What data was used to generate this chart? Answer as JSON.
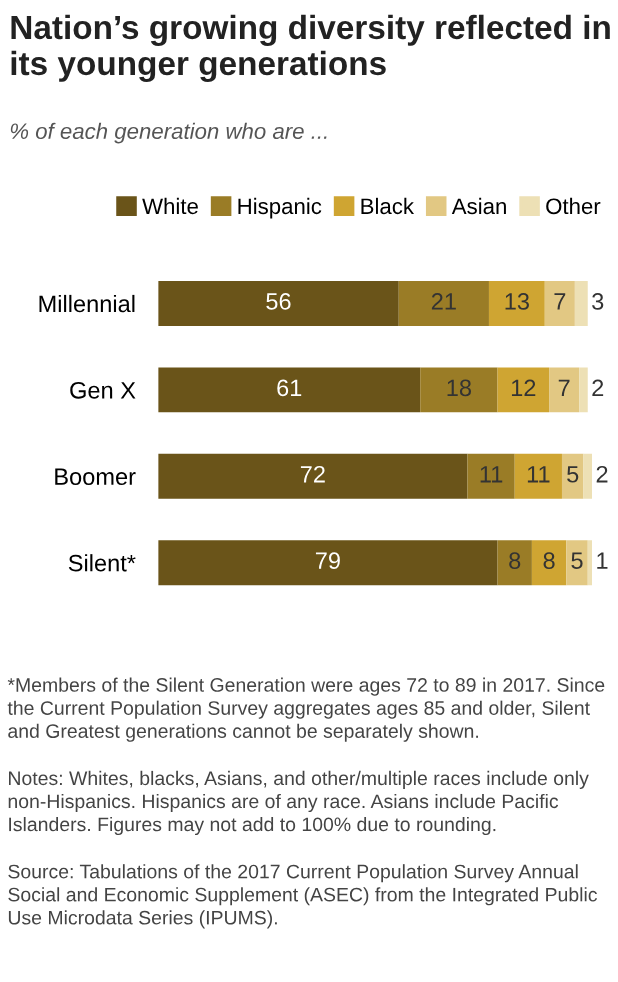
{
  "chart_data": {
    "type": "bar",
    "orientation": "horizontal",
    "stacked": true,
    "title": "Nation’s growing diversity reflected in its younger generations",
    "subtitle": "% of each generation who are ...",
    "categories": [
      "Millennial",
      "Gen X",
      "Boomer",
      "Silent*"
    ],
    "series": [
      {
        "name": "White",
        "color": "#6a5419",
        "values": [
          56,
          61,
          72,
          79
        ]
      },
      {
        "name": "Hispanic",
        "color": "#9a7c26",
        "values": [
          21,
          18,
          11,
          8
        ]
      },
      {
        "name": "Black",
        "color": "#cfa532",
        "values": [
          13,
          12,
          11,
          8
        ]
      },
      {
        "name": "Asian",
        "color": "#e2c883",
        "values": [
          7,
          7,
          5,
          5
        ]
      },
      {
        "name": "Other",
        "color": "#ede0b5",
        "values": [
          3,
          2,
          2,
          1
        ]
      }
    ],
    "data_labels": true,
    "legend": "top right",
    "tick_labels": "y",
    "grid": false,
    "annotations": [
      "*Members of the Silent Generation were ages 72 to 89 in 2017. Since the Current Population Survey aggregates ages 85 and older, Silent and Greatest generations cannot be separately shown.",
      "Notes: Whites, blacks, Asians, and other/multiple races include only non-Hispanics. Hispanics are of any race. Asians include Pacific Islanders. Figures may not add to 100% due to rounding.",
      "Source: Tabulations of the 2017 Current Population Survey Annual Social and Economic Supplement (ASEC) from the Integrated Public Use Microdata Series (IPUMS)."
    ]
  }
}
